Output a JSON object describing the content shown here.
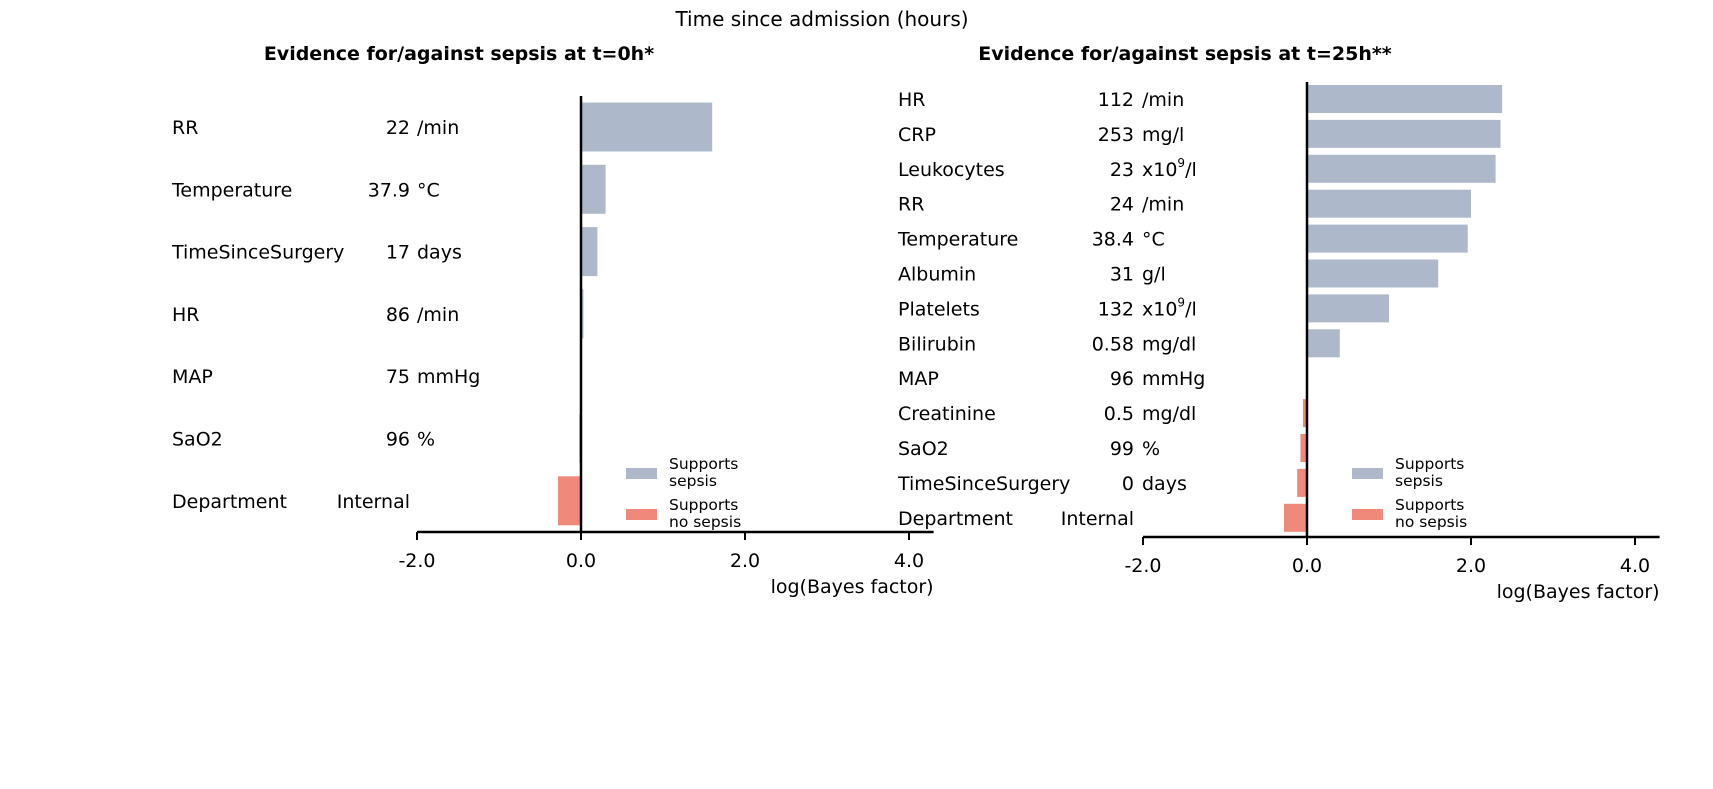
{
  "figure": {
    "suptitle": "Time since admission (hours)"
  },
  "colors": {
    "sepsis": "#adb9cb",
    "no_sepsis": "#f0897a",
    "axis": "#000000"
  },
  "chart_data": [
    {
      "type": "bar",
      "orientation": "horizontal",
      "title": "Evidence for/against sepsis at t=0h*",
      "xlabel": "log(Bayes factor)",
      "xlim": [
        -2.0,
        4.3
      ],
      "xticks": [
        -2.0,
        0.0,
        2.0,
        4.0
      ],
      "xtick_labels": [
        "-2.0",
        "0.0",
        "2.0",
        "4.0"
      ],
      "legend_position": "lower-right",
      "legend": [
        {
          "key": "sepsis",
          "label_lines": [
            "Supports",
            "sepsis"
          ]
        },
        {
          "key": "no_sepsis",
          "label_lines": [
            "Supports",
            "no sepsis"
          ]
        }
      ],
      "rows": [
        {
          "feature": "RR",
          "value": "22",
          "unit": "/min",
          "unit_sup": "",
          "unit_after": "",
          "log_bf": 1.6
        },
        {
          "feature": "Temperature",
          "value": "37.9",
          "unit": "°C",
          "unit_sup": "",
          "unit_after": "",
          "log_bf": 0.3
        },
        {
          "feature": "TimeSinceSurgery",
          "value": "17",
          "unit": "days",
          "unit_sup": "",
          "unit_after": "",
          "log_bf": 0.2
        },
        {
          "feature": "HR",
          "value": "86",
          "unit": "/min",
          "unit_sup": "",
          "unit_after": "",
          "log_bf": 0.03
        },
        {
          "feature": "MAP",
          "value": "75",
          "unit": "mmHg",
          "unit_sup": "",
          "unit_after": "",
          "log_bf": 0.0
        },
        {
          "feature": "SaO2",
          "value": "96",
          "unit": "%",
          "unit_sup": "",
          "unit_after": "",
          "log_bf": -0.02
        },
        {
          "feature": "Department",
          "value": "Internal",
          "unit": "",
          "unit_sup": "",
          "unit_after": "",
          "log_bf": -0.28
        }
      ]
    },
    {
      "type": "bar",
      "orientation": "horizontal",
      "title": "Evidence for/against sepsis at t=25h**",
      "xlabel": "log(Bayes factor)",
      "xlim": [
        -2.0,
        4.3
      ],
      "xticks": [
        -2.0,
        0.0,
        2.0,
        4.0
      ],
      "xtick_labels": [
        "-2.0",
        "0.0",
        "2.0",
        "4.0"
      ],
      "legend_position": "lower-right",
      "legend": [
        {
          "key": "sepsis",
          "label_lines": [
            "Supports",
            "sepsis"
          ]
        },
        {
          "key": "no_sepsis",
          "label_lines": [
            "Supports",
            "no sepsis"
          ]
        }
      ],
      "rows": [
        {
          "feature": "HR",
          "value": "112",
          "unit": "/min",
          "unit_sup": "",
          "unit_after": "",
          "log_bf": 2.38
        },
        {
          "feature": "CRP",
          "value": "253",
          "unit": "mg/l",
          "unit_sup": "",
          "unit_after": "",
          "log_bf": 2.36
        },
        {
          "feature": "Leukocytes",
          "value": "23",
          "unit": "x10",
          "unit_sup": "9",
          "unit_after": "/l",
          "log_bf": 2.3
        },
        {
          "feature": "RR",
          "value": "24",
          "unit": "/min",
          "unit_sup": "",
          "unit_after": "",
          "log_bf": 2.0
        },
        {
          "feature": "Temperature",
          "value": "38.4",
          "unit": "°C",
          "unit_sup": "",
          "unit_after": "",
          "log_bf": 1.96
        },
        {
          "feature": "Albumin",
          "value": "31",
          "unit": "g/l",
          "unit_sup": "",
          "unit_after": "",
          "log_bf": 1.6
        },
        {
          "feature": "Platelets",
          "value": "132",
          "unit": "x10",
          "unit_sup": "9",
          "unit_after": "/l",
          "log_bf": 1.0
        },
        {
          "feature": "Bilirubin",
          "value": "0.58",
          "unit": "mg/dl",
          "unit_sup": "",
          "unit_after": "",
          "log_bf": 0.4
        },
        {
          "feature": "MAP",
          "value": "96",
          "unit": "mmHg",
          "unit_sup": "",
          "unit_after": "",
          "log_bf": 0.0
        },
        {
          "feature": "Creatinine",
          "value": "0.5",
          "unit": "mg/dl",
          "unit_sup": "",
          "unit_after": "",
          "log_bf": -0.05
        },
        {
          "feature": "SaO2",
          "value": "99",
          "unit": "%",
          "unit_sup": "",
          "unit_after": "",
          "log_bf": -0.08
        },
        {
          "feature": "TimeSinceSurgery",
          "value": "0",
          "unit": "days",
          "unit_sup": "",
          "unit_after": "",
          "log_bf": -0.12
        },
        {
          "feature": "Department",
          "value": "Internal",
          "unit": "",
          "unit_sup": "",
          "unit_after": "",
          "log_bf": -0.28
        }
      ]
    }
  ]
}
